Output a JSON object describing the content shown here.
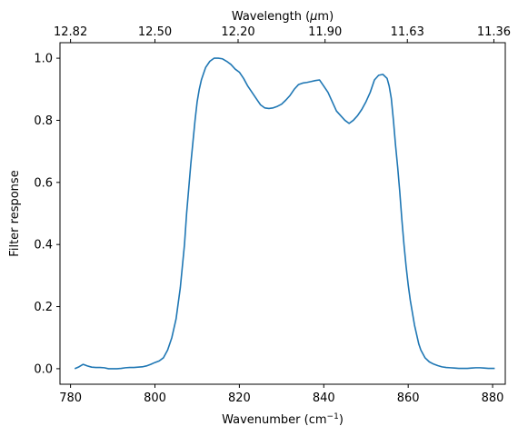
{
  "chart_data": {
    "type": "line",
    "xlabel": "Wavenumber (cm",
    "xlabel_sup": "−1",
    "xlabel_close": ")",
    "ylabel": "Filter response",
    "top_xlabel_prefix": "Wavelength (",
    "top_xlabel_mu": "μ",
    "top_xlabel_suffix": "m)",
    "xlim": [
      777.5,
      883
    ],
    "ylim": [
      -0.05,
      1.05
    ],
    "xticks": [
      780,
      800,
      820,
      840,
      860,
      880
    ],
    "yticks": [
      0.0,
      0.2,
      0.4,
      0.6,
      0.8,
      1.0
    ],
    "top_ticks": [
      {
        "wavenumber": 780.0,
        "label": "12.82"
      },
      {
        "wavenumber": 800.0,
        "label": "12.50"
      },
      {
        "wavenumber": 819.7,
        "label": "12.20"
      },
      {
        "wavenumber": 840.3,
        "label": "11.90"
      },
      {
        "wavenumber": 859.8,
        "label": "11.63"
      },
      {
        "wavenumber": 880.3,
        "label": "11.36"
      }
    ],
    "grid": false,
    "series": [
      {
        "color": "#1f77b4",
        "x": [
          781,
          782,
          783,
          784,
          785,
          786,
          787,
          788,
          789,
          790,
          791,
          792,
          793,
          794,
          795,
          796,
          797,
          798,
          799,
          800,
          801,
          802,
          803,
          804,
          805,
          806,
          807,
          807.5,
          808,
          808.5,
          809,
          809.5,
          810,
          810.5,
          811,
          811.5,
          812,
          813,
          814,
          815,
          816,
          817,
          818,
          819,
          820,
          821,
          822,
          823,
          824,
          825,
          826,
          827,
          828,
          829,
          830,
          831,
          832,
          833,
          834,
          835,
          836,
          837,
          838,
          839,
          840,
          841,
          842,
          843,
          844,
          845,
          846,
          847,
          848,
          849,
          850,
          851,
          852,
          853,
          854,
          855,
          855.5,
          856,
          856.5,
          857,
          857.5,
          858,
          858.5,
          859,
          859.5,
          860,
          860.5,
          861,
          861.5,
          862,
          862.5,
          863,
          864,
          865,
          866,
          867,
          868,
          869,
          870,
          871,
          872,
          873,
          874,
          875,
          876,
          877,
          878,
          879,
          880,
          880.5
        ],
        "y": [
          0.0,
          0.006,
          0.014,
          0.009,
          0.005,
          0.004,
          0.004,
          0.003,
          0.0,
          0.0,
          0.0,
          0.001,
          0.003,
          0.004,
          0.004,
          0.005,
          0.006,
          0.009,
          0.014,
          0.02,
          0.025,
          0.035,
          0.06,
          0.1,
          0.16,
          0.26,
          0.4,
          0.5,
          0.58,
          0.66,
          0.73,
          0.8,
          0.86,
          0.9,
          0.93,
          0.95,
          0.97,
          0.99,
          1.0,
          1.0,
          0.998,
          0.99,
          0.98,
          0.965,
          0.955,
          0.935,
          0.91,
          0.89,
          0.87,
          0.85,
          0.84,
          0.838,
          0.84,
          0.845,
          0.852,
          0.865,
          0.88,
          0.9,
          0.915,
          0.92,
          0.922,
          0.925,
          0.928,
          0.93,
          0.91,
          0.89,
          0.86,
          0.83,
          0.815,
          0.8,
          0.79,
          0.8,
          0.815,
          0.835,
          0.86,
          0.89,
          0.93,
          0.945,
          0.948,
          0.935,
          0.91,
          0.87,
          0.8,
          0.72,
          0.65,
          0.57,
          0.48,
          0.4,
          0.33,
          0.27,
          0.22,
          0.18,
          0.14,
          0.11,
          0.08,
          0.06,
          0.035,
          0.022,
          0.015,
          0.01,
          0.006,
          0.004,
          0.003,
          0.002,
          0.001,
          0.001,
          0.001,
          0.002,
          0.003,
          0.003,
          0.002,
          0.001,
          0.001,
          0.001
        ]
      }
    ]
  }
}
